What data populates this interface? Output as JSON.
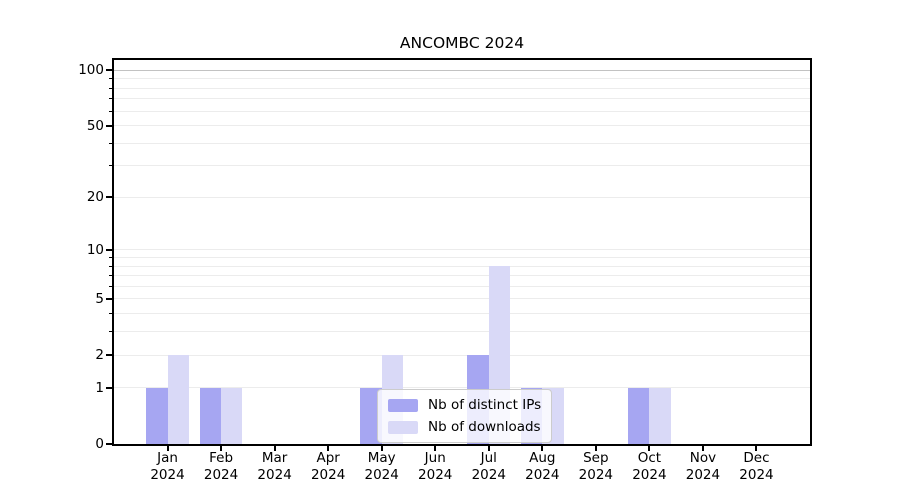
{
  "title": "ANCOMBC 2024",
  "colors": {
    "bar_distinct_ips": "#a6a6f2",
    "bar_downloads": "#d9d9f7",
    "grid_minor": "#ececec",
    "grid_major": "#c2c2c2",
    "spine": "#000000",
    "background": "#ffffff"
  },
  "chart_data": {
    "type": "bar",
    "title": "ANCOMBC 2024",
    "categories": [
      "Jan 2024",
      "Feb 2024",
      "Mar 2024",
      "Apr 2024",
      "May 2024",
      "Jun 2024",
      "Jul 2024",
      "Aug 2024",
      "Sep 2024",
      "Oct 2024",
      "Nov 2024",
      "Dec 2024"
    ],
    "months": [
      "Jan",
      "Feb",
      "Mar",
      "Apr",
      "May",
      "Jun",
      "Jul",
      "Aug",
      "Sep",
      "Oct",
      "Nov",
      "Dec"
    ],
    "year": "2024",
    "series": [
      {
        "name": "Nb of distinct IPs",
        "color": "#a6a6f2",
        "values": [
          1,
          1,
          0,
          0,
          1,
          0,
          2,
          1,
          0,
          1,
          0,
          0
        ]
      },
      {
        "name": "Nb of downloads",
        "color": "#d9d9f7",
        "values": [
          2,
          1,
          0,
          0,
          2,
          0,
          8,
          1,
          0,
          1,
          0,
          0
        ]
      }
    ],
    "xlabel": "",
    "ylabel": "",
    "yscale": "log1p",
    "ylim": [
      0,
      115
    ],
    "yticks": [
      0,
      1,
      2,
      5,
      10,
      20,
      50,
      100
    ],
    "minor_yticks": [
      3,
      4,
      6,
      7,
      8,
      9,
      30,
      40,
      60,
      70,
      80,
      90
    ],
    "grid": true,
    "legend_position": "inside lower center"
  }
}
